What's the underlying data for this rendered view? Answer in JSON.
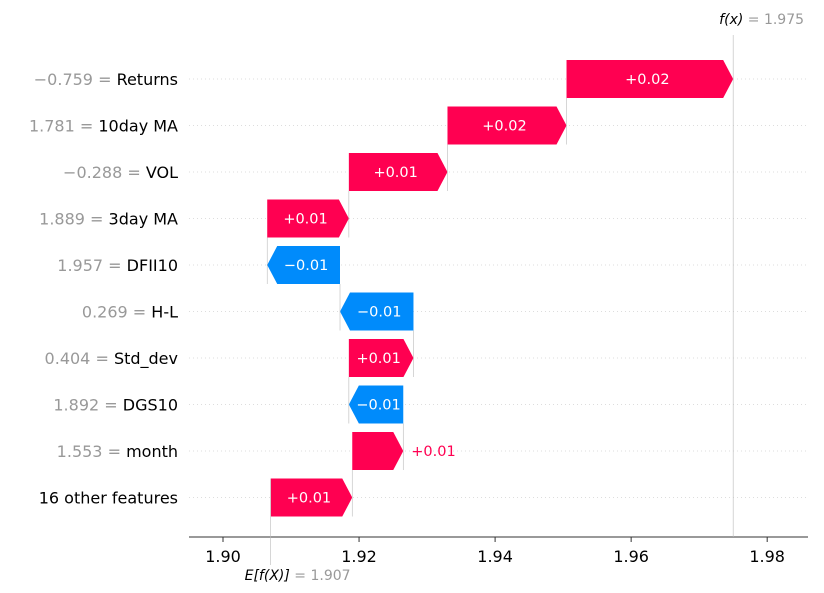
{
  "chart_data": {
    "type": "waterfall",
    "title": "",
    "xlabel": "",
    "ylabel": "",
    "xlim": [
      1.895,
      1.986
    ],
    "x_ticks": [
      "1.90",
      "1.92",
      "1.94",
      "1.96",
      "1.98"
    ],
    "x_tick_values": [
      1.9,
      1.92,
      1.94,
      1.96,
      1.98
    ],
    "fx_label": "f(x)",
    "fx_value_text": "= 1.975",
    "fx_value": 1.975,
    "ex_label": "E[f(X)]",
    "ex_value_text": "= 1.907",
    "ex_value": 1.907,
    "positive_color": "#ff0051",
    "negative_color": "#008bfb",
    "features": [
      {
        "feature_value": "−0.759 =",
        "feature_name": "Returns",
        "label": "+0.02",
        "start": 1.9505,
        "end": 1.975,
        "label_inside": true
      },
      {
        "feature_value": "1.781 =",
        "feature_name": "10day MA",
        "label": "+0.02",
        "start": 1.933,
        "end": 1.9505,
        "label_inside": true
      },
      {
        "feature_value": "−0.288 =",
        "feature_name": "VOL",
        "label": "+0.01",
        "start": 1.9185,
        "end": 1.933,
        "label_inside": true
      },
      {
        "feature_value": "1.889 =",
        "feature_name": "3day MA",
        "label": "+0.01",
        "start": 1.9065,
        "end": 1.9185,
        "label_inside": true
      },
      {
        "feature_value": "1.957 =",
        "feature_name": "DFII10",
        "label": "−0.01",
        "start": 1.9172,
        "end": 1.9065,
        "label_inside": true
      },
      {
        "feature_value": "0.269 =",
        "feature_name": "H-L",
        "label": "−0.01",
        "start": 1.928,
        "end": 1.9172,
        "label_inside": true
      },
      {
        "feature_value": "0.404 =",
        "feature_name": "Std_dev",
        "label": "+0.01",
        "start": 1.9185,
        "end": 1.928,
        "label_inside": true
      },
      {
        "feature_value": "1.892 =",
        "feature_name": "DGS10",
        "label": "−0.01",
        "start": 1.9265,
        "end": 1.9185,
        "label_inside": true
      },
      {
        "feature_value": "1.553 =",
        "feature_name": "month",
        "label": "+0.01",
        "start": 1.919,
        "end": 1.9265,
        "label_inside": false
      },
      {
        "feature_value": "",
        "feature_name": "16 other features",
        "label": "+0.01",
        "start": 1.907,
        "end": 1.919,
        "label_inside": true
      }
    ]
  }
}
